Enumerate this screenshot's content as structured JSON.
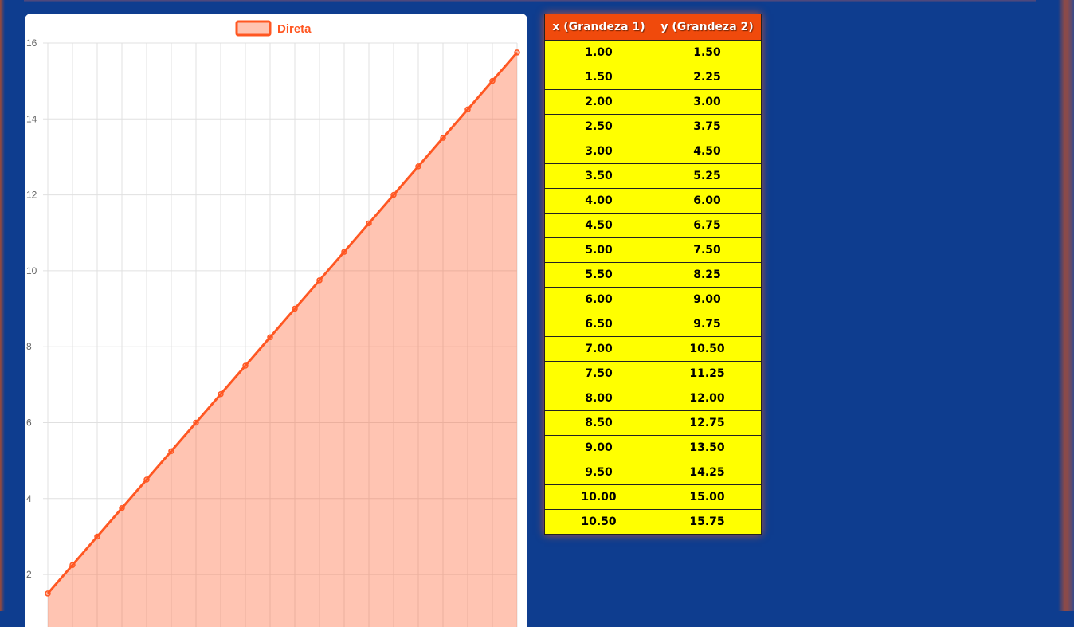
{
  "theme": {
    "background": "#0e3d8f",
    "series_color": "#ff5722",
    "series_fill": "rgba(255, 87, 34, 0.35)",
    "table_header_bg": "#f04a0c",
    "table_cell_bg": "#ffff00"
  },
  "chart_data": {
    "type": "line",
    "fill": true,
    "title": "",
    "xlabel": "",
    "ylabel": "",
    "legend_position": "top",
    "grid": true,
    "ylim": [
      1.5,
      16
    ],
    "y_ticks": [
      "2",
      "4",
      "6",
      "8",
      "10",
      "12",
      "14",
      "16"
    ],
    "series": [
      {
        "name": "Direta",
        "x": [
          1.0,
          1.5,
          2.0,
          2.5,
          3.0,
          3.5,
          4.0,
          4.5,
          5.0,
          5.5,
          6.0,
          6.5,
          7.0,
          7.5,
          8.0,
          8.5,
          9.0,
          9.5,
          10.0,
          10.5
        ],
        "values": [
          1.5,
          2.25,
          3.0,
          3.75,
          4.5,
          5.25,
          6.0,
          6.75,
          7.5,
          8.25,
          9.0,
          9.75,
          10.5,
          11.25,
          12.0,
          12.75,
          13.5,
          14.25,
          15.0,
          15.75
        ]
      }
    ]
  },
  "table": {
    "headers": [
      "x (Grandeza 1)",
      "y (Grandeza 2)"
    ],
    "rows": [
      [
        "1.00",
        "1.50"
      ],
      [
        "1.50",
        "2.25"
      ],
      [
        "2.00",
        "3.00"
      ],
      [
        "2.50",
        "3.75"
      ],
      [
        "3.00",
        "4.50"
      ],
      [
        "3.50",
        "5.25"
      ],
      [
        "4.00",
        "6.00"
      ],
      [
        "4.50",
        "6.75"
      ],
      [
        "5.00",
        "7.50"
      ],
      [
        "5.50",
        "8.25"
      ],
      [
        "6.00",
        "9.00"
      ],
      [
        "6.50",
        "9.75"
      ],
      [
        "7.00",
        "10.50"
      ],
      [
        "7.50",
        "11.25"
      ],
      [
        "8.00",
        "12.00"
      ],
      [
        "8.50",
        "12.75"
      ],
      [
        "9.00",
        "13.50"
      ],
      [
        "9.50",
        "14.25"
      ],
      [
        "10.00",
        "15.00"
      ],
      [
        "10.50",
        "15.75"
      ]
    ]
  }
}
